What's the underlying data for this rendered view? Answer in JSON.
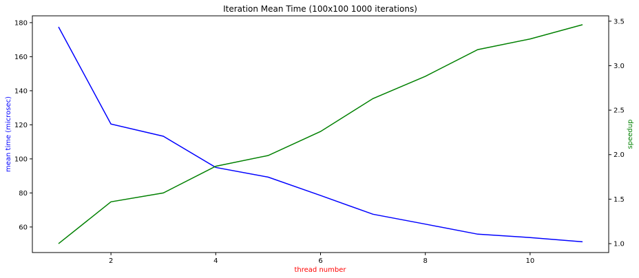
{
  "chart_data": {
    "type": "line",
    "title": "Iteration Mean Time (100x100 1000 iterations)",
    "xlabel": "thread number",
    "ylabel_left": "mean time (microsec)",
    "ylabel_right": "speedup",
    "x": [
      1,
      2,
      3,
      4,
      5,
      6,
      7,
      8,
      9,
      10,
      11
    ],
    "xlim": [
      0.5,
      11.5
    ],
    "ylim_left": [
      45,
      184
    ],
    "ylim_right": [
      0.9,
      3.56
    ],
    "xticks": [
      2,
      4,
      6,
      8,
      10
    ],
    "yticks_left": [
      60,
      80,
      100,
      120,
      140,
      160,
      180
    ],
    "yticks_right": [
      1.0,
      1.5,
      2.0,
      2.5,
      3.0,
      3.5
    ],
    "grid": false,
    "series": [
      {
        "axis": "left",
        "color": "#0000ff",
        "values": [
          177.5,
          120.5,
          113.3,
          95.0,
          89.3,
          78.5,
          67.5,
          61.7,
          55.8,
          53.8,
          51.3
        ]
      },
      {
        "axis": "right",
        "color": "#008000",
        "values": [
          1.0,
          1.47,
          1.57,
          1.87,
          1.99,
          2.26,
          2.63,
          2.88,
          3.18,
          3.3,
          3.46
        ]
      }
    ],
    "colors": {
      "xlabel": "#ff0000",
      "ylabel_left": "#0000ff",
      "ylabel_right": "#008000"
    }
  }
}
